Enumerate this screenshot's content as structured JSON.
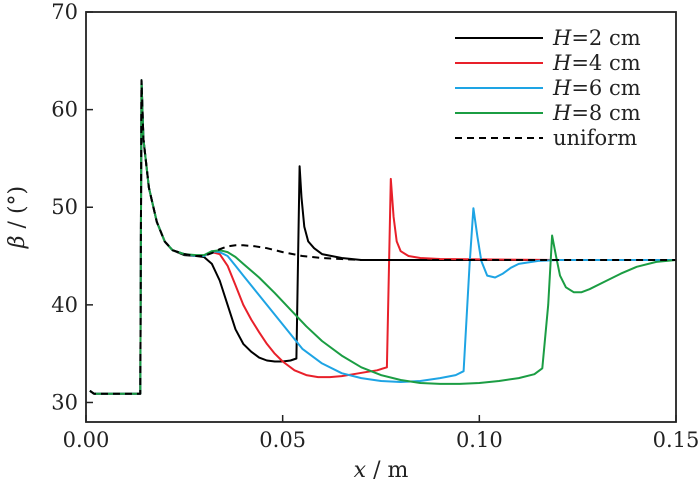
{
  "chart_data": {
    "type": "line",
    "title": "",
    "xlabel": "x / m",
    "xlabel_var": "x",
    "xlabel_unit": " / m",
    "ylabel": "β / (°)",
    "ylabel_var": "β",
    "ylabel_unit": " / (°)",
    "xlim": [
      0,
      0.15
    ],
    "ylim": [
      28,
      70
    ],
    "xticks": [
      0.0,
      0.05,
      0.1,
      0.15
    ],
    "xtick_labels": [
      "0.00",
      "0.05",
      "0.10",
      "0.15"
    ],
    "yticks": [
      30,
      40,
      50,
      60,
      70
    ],
    "ytick_labels": [
      "30",
      "40",
      "50",
      "60",
      "70"
    ],
    "grid": false,
    "legend_position": "top-right",
    "series": [
      {
        "name": "H=2 cm",
        "legend_var": "H",
        "legend_value": "=2 cm",
        "color": "#000000",
        "dash": "solid",
        "x": [
          0.001,
          0.002,
          0.0138,
          0.0141,
          0.0146,
          0.016,
          0.018,
          0.02,
          0.022,
          0.025,
          0.028,
          0.03,
          0.032,
          0.034,
          0.036,
          0.038,
          0.04,
          0.042,
          0.044,
          0.046,
          0.048,
          0.05,
          0.052,
          0.0535,
          0.0543,
          0.0548,
          0.0555,
          0.0565,
          0.058,
          0.06,
          0.065,
          0.07,
          0.09,
          0.12,
          0.15
        ],
        "y": [
          31.2,
          30.9,
          30.9,
          63.0,
          57.0,
          52.0,
          48.5,
          46.5,
          45.6,
          45.1,
          45.0,
          44.9,
          44.2,
          42.5,
          40.0,
          37.5,
          36.0,
          35.2,
          34.6,
          34.3,
          34.2,
          34.2,
          34.3,
          34.5,
          54.2,
          51.0,
          48.0,
          46.5,
          45.8,
          45.2,
          44.8,
          44.6,
          44.6,
          44.6,
          44.6
        ]
      },
      {
        "name": "H=4 cm",
        "legend_var": "H",
        "legend_value": "=4 cm",
        "color": "#e8202a",
        "dash": "solid",
        "x": [
          0.001,
          0.002,
          0.0138,
          0.0141,
          0.0146,
          0.016,
          0.018,
          0.02,
          0.022,
          0.025,
          0.028,
          0.03,
          0.032,
          0.034,
          0.036,
          0.038,
          0.04,
          0.042,
          0.044,
          0.046,
          0.048,
          0.05,
          0.053,
          0.056,
          0.059,
          0.062,
          0.065,
          0.068,
          0.071,
          0.074,
          0.0765,
          0.0775,
          0.0782,
          0.079,
          0.08,
          0.082,
          0.085,
          0.09,
          0.12,
          0.15
        ],
        "y": [
          31.2,
          30.9,
          30.9,
          63.0,
          57.0,
          52.0,
          48.5,
          46.5,
          45.6,
          45.2,
          45.0,
          45.0,
          45.4,
          45.2,
          44.0,
          42.0,
          40.0,
          38.5,
          37.2,
          36.0,
          35.0,
          34.2,
          33.3,
          32.8,
          32.6,
          32.6,
          32.7,
          32.9,
          33.1,
          33.3,
          33.6,
          52.9,
          49.0,
          46.5,
          45.5,
          45.0,
          44.8,
          44.7,
          44.6,
          44.6
        ]
      },
      {
        "name": "H=6 cm",
        "legend_var": "H",
        "legend_value": "=6 cm",
        "color": "#1ea4e4",
        "dash": "solid",
        "x": [
          0.001,
          0.002,
          0.0138,
          0.0141,
          0.0146,
          0.016,
          0.018,
          0.02,
          0.022,
          0.025,
          0.028,
          0.03,
          0.032,
          0.034,
          0.036,
          0.038,
          0.04,
          0.043,
          0.046,
          0.049,
          0.052,
          0.055,
          0.06,
          0.065,
          0.07,
          0.075,
          0.08,
          0.085,
          0.09,
          0.094,
          0.096,
          0.0975,
          0.0985,
          0.0995,
          0.1005,
          0.102,
          0.104,
          0.106,
          0.108,
          0.11,
          0.115,
          0.12,
          0.15
        ],
        "y": [
          31.2,
          30.9,
          30.9,
          63.0,
          57.0,
          52.0,
          48.5,
          46.5,
          45.6,
          45.2,
          45.0,
          45.0,
          45.5,
          45.4,
          45.0,
          44.0,
          43.0,
          41.5,
          40.0,
          38.5,
          37.0,
          35.5,
          34.0,
          33.0,
          32.5,
          32.2,
          32.1,
          32.2,
          32.5,
          32.8,
          33.2,
          44.0,
          49.9,
          47.0,
          44.5,
          43.0,
          42.8,
          43.2,
          43.8,
          44.2,
          44.5,
          44.6,
          44.6
        ]
      },
      {
        "name": "H=8 cm",
        "legend_var": "H",
        "legend_value": "=8 cm",
        "color": "#1b9d43",
        "dash": "solid",
        "x": [
          0.001,
          0.002,
          0.0138,
          0.0141,
          0.0146,
          0.016,
          0.018,
          0.02,
          0.022,
          0.025,
          0.028,
          0.03,
          0.032,
          0.034,
          0.036,
          0.038,
          0.04,
          0.044,
          0.048,
          0.052,
          0.056,
          0.06,
          0.065,
          0.07,
          0.075,
          0.08,
          0.085,
          0.09,
          0.095,
          0.1,
          0.105,
          0.11,
          0.114,
          0.116,
          0.1175,
          0.1185,
          0.1195,
          0.1205,
          0.122,
          0.124,
          0.126,
          0.128,
          0.132,
          0.136,
          0.14,
          0.145,
          0.15
        ],
        "y": [
          31.2,
          30.9,
          30.9,
          63.0,
          57.0,
          52.0,
          48.5,
          46.5,
          45.6,
          45.2,
          45.1,
          45.1,
          45.5,
          45.6,
          45.4,
          44.9,
          44.2,
          42.8,
          41.2,
          39.5,
          37.8,
          36.3,
          34.8,
          33.6,
          32.8,
          32.3,
          32.0,
          31.9,
          31.9,
          32.0,
          32.2,
          32.5,
          32.9,
          33.5,
          40.0,
          47.1,
          45.0,
          43.0,
          41.8,
          41.3,
          41.3,
          41.6,
          42.4,
          43.2,
          43.9,
          44.4,
          44.6
        ]
      },
      {
        "name": "uniform",
        "legend_var": "",
        "legend_value": "uniform",
        "color": "#000000",
        "dash": "dashed",
        "x": [
          0.001,
          0.002,
          0.0138,
          0.0141,
          0.0146,
          0.016,
          0.018,
          0.02,
          0.022,
          0.025,
          0.028,
          0.03,
          0.032,
          0.034,
          0.036,
          0.038,
          0.04,
          0.043,
          0.046,
          0.05,
          0.055,
          0.06,
          0.065,
          0.07,
          0.08,
          0.1,
          0.12,
          0.15
        ],
        "y": [
          31.2,
          30.9,
          30.9,
          63.0,
          57.0,
          52.0,
          48.5,
          46.5,
          45.6,
          45.2,
          45.0,
          45.0,
          45.3,
          45.7,
          46.0,
          46.1,
          46.1,
          46.0,
          45.8,
          45.4,
          45.0,
          44.8,
          44.7,
          44.6,
          44.6,
          44.6,
          44.6,
          44.6
        ]
      }
    ]
  }
}
